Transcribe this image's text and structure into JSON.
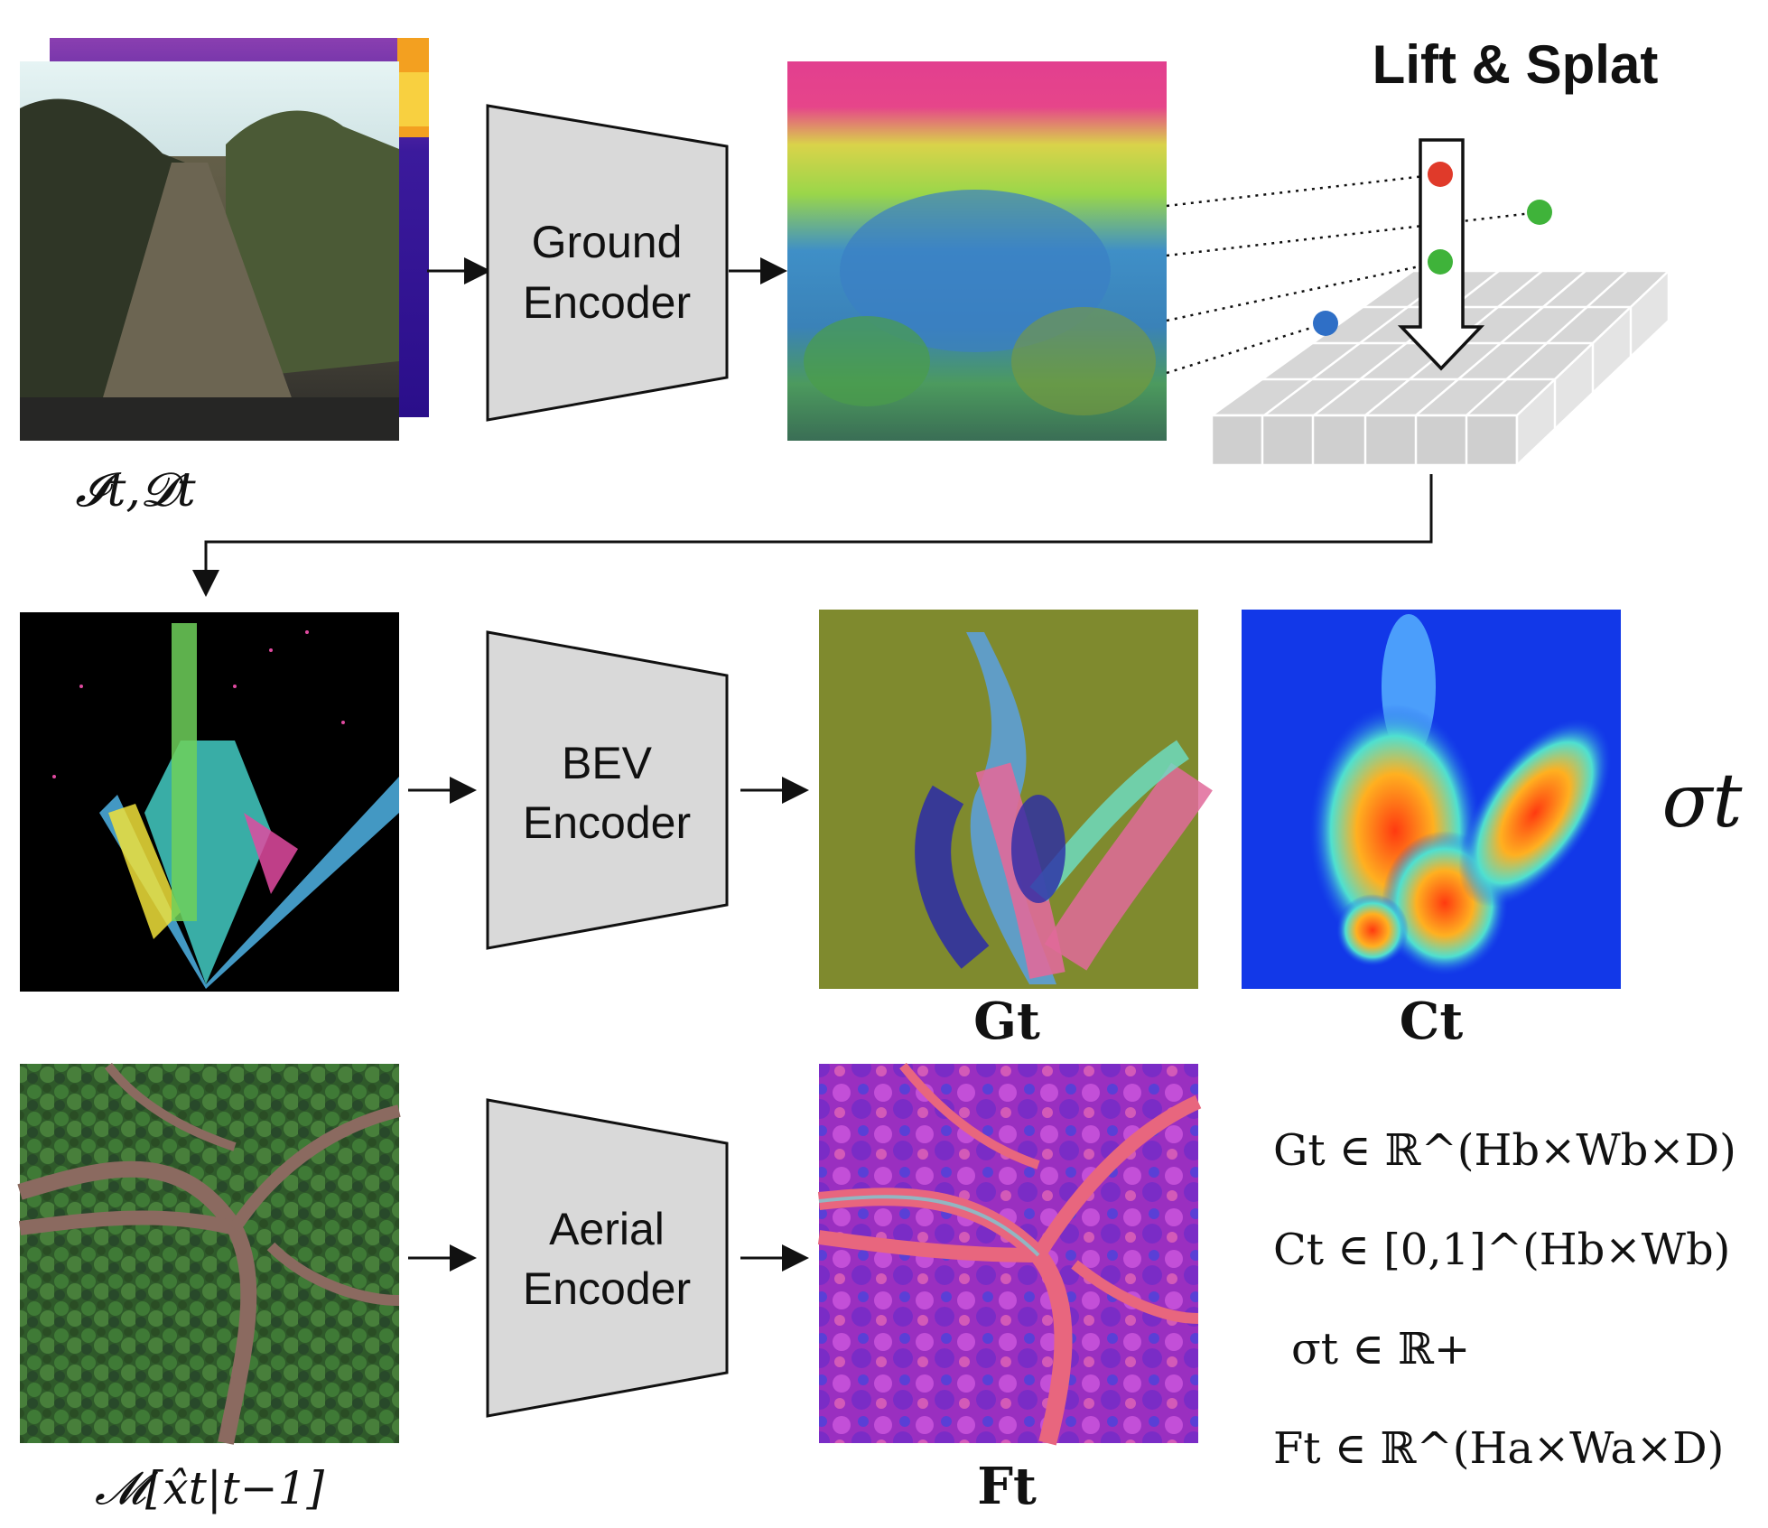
{
  "title": "Lift & Splat",
  "encoders": {
    "ground": [
      "Ground",
      "Encoder"
    ],
    "bev": [
      "BEV",
      "Encoder"
    ],
    "aerial": [
      "Aerial",
      "Encoder"
    ]
  },
  "labels": {
    "input_images": "𝓘t,𝓓t",
    "map_crop": "𝓜[x̂t|t−1]",
    "G": "Gt",
    "C": "Ct",
    "F": "Ft",
    "sigma": "σt"
  },
  "equations": {
    "G_set": "Gt ∈ ℝ^(Hb×Wb×D)",
    "C_set": "Ct ∈ [0,1]^(Hb×Wb)",
    "sigma_set": "σt ∈ ℝ+",
    "F_set": "Ft ∈ ℝ^(Ha×Wa×D)"
  },
  "point_colors": {
    "red": "#e03a2a",
    "green_high": "#3fb33a",
    "green_low": "#3fb33a",
    "blue": "#2f6fc6"
  }
}
